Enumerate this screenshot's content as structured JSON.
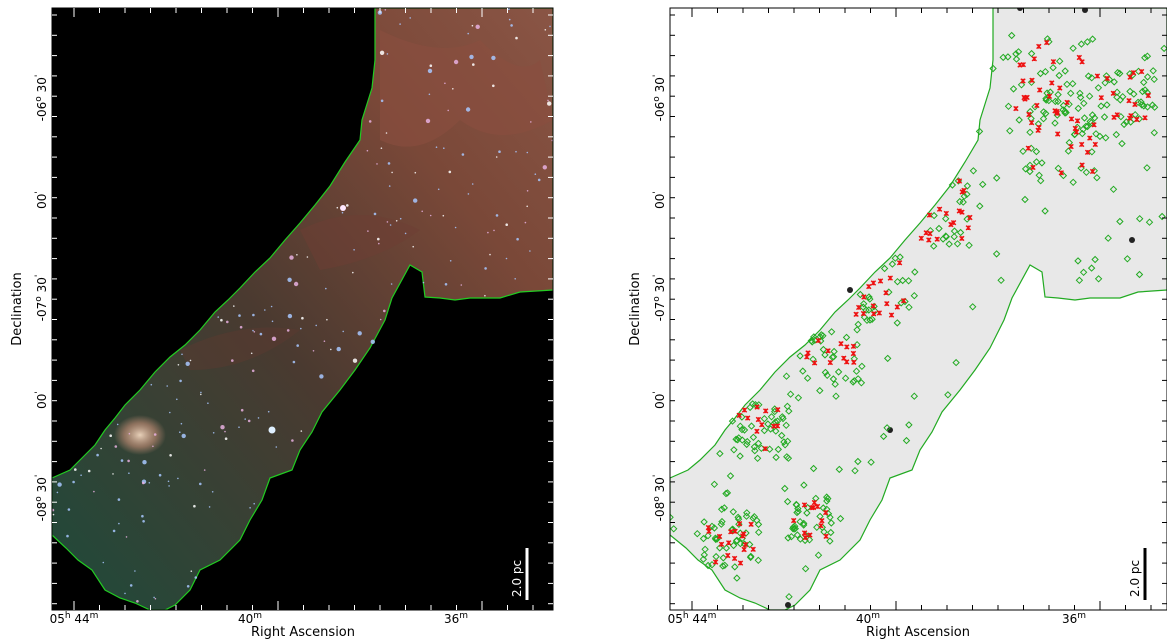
{
  "figure": {
    "left_panel": {
      "xlabel": "Right Ascension",
      "ylabel": "Declination",
      "scalebar_label": "2.0 pc",
      "colors": {
        "background": "#000000",
        "outline": "#22cc22",
        "cloud": "#7a4535",
        "stars": "#b8d8ff"
      }
    },
    "right_panel": {
      "xlabel": "Right Ascension",
      "ylabel": "Declination",
      "scalebar_label": "2.0 pc",
      "colors": {
        "background": "#ffffff",
        "map": "#e6e6e6",
        "outline": "#22aa22",
        "diamonds": "#22aa22",
        "crosses": "#ee1111"
      }
    },
    "x_ticks": [
      {
        "h": "05",
        "m": "44",
        "prefix": true
      },
      {
        "m": "40",
        "prefix": false
      },
      {
        "m": "36",
        "prefix": false
      }
    ],
    "y_ticks": [
      {
        "deg": "-06",
        "min": "30"
      },
      {
        "min": "00"
      },
      {
        "deg": "-07",
        "min": "30"
      },
      {
        "min": "00"
      },
      {
        "deg": "-08",
        "min": "30"
      }
    ]
  }
}
